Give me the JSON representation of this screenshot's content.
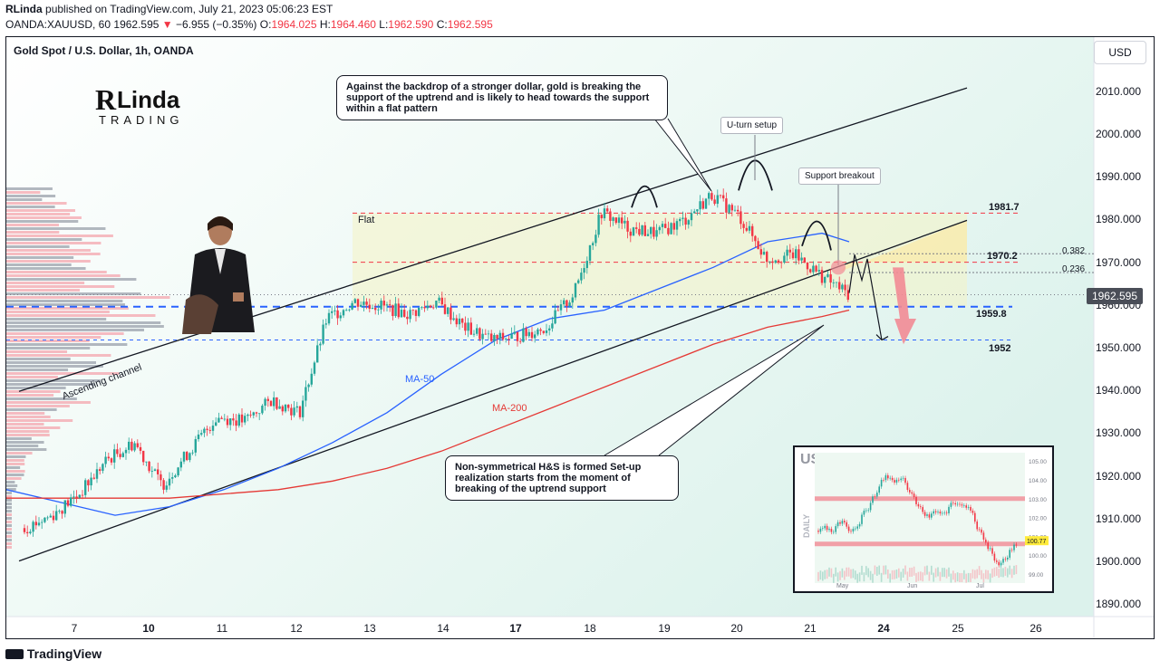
{
  "header": {
    "publisher": "RLinda",
    "published_text": "published on TradingView.com, July 21, 2023 05:06:23 EST",
    "symbol": "OANDA:XAUUSD, 60",
    "last": "1962.595",
    "arrow": "▼",
    "change": "−6.955 (−0.35%)",
    "o_label": "O:",
    "o": "1964.025",
    "h_label": "H:",
    "h": "1964.460",
    "l_label": "L:",
    "l": "1962.590",
    "c_label": "C:",
    "c": "1962.595"
  },
  "chart_title": "Gold Spot / U.S. Dollar, 1h, OANDA",
  "currency_button": "USD",
  "logo": {
    "line1": "RLinda",
    "line2": "TRADING"
  },
  "annotations": {
    "callout_top": "Against the backdrop of a stronger dollar, gold is breaking the support of the uptrend and is likely to head towards the support within a flat pattern",
    "callout_bottom": "Non-symmetrical H&S is formed Set-up realization starts from the moment of breaking of the uptrend support",
    "uturn": "U-turn setup",
    "support_breakout": "Support breakout",
    "flat": "Flat",
    "ascending_channel": "Ascending channel",
    "ma50": "MA-50",
    "ma200": "MA-200",
    "lvl_1981": "1981.7",
    "lvl_1970": "1970.2",
    "lvl_1959": "1959.8",
    "lvl_1952": "1952",
    "fib_0382": "0.382",
    "fib_0236": "0.236"
  },
  "current_price_tag": "1962.595",
  "footer": "TradingView",
  "colors": {
    "up": "#26a69a",
    "down": "#f23645",
    "ma50": "#2962ff",
    "ma200": "#e53935",
    "level": "#f23645",
    "support": "#2962ff"
  },
  "chart_data": [
    {
      "type": "candlestick",
      "title": "Gold Spot / U.S. Dollar, 1h, OANDA",
      "x_ticks": [
        "7",
        "10",
        "11",
        "12",
        "13",
        "14",
        "17",
        "18",
        "19",
        "20",
        "21",
        "24",
        "25",
        "26"
      ],
      "y_ticks": [
        1890,
        1900,
        1910,
        1920,
        1930,
        1940,
        1950,
        1960,
        1970,
        1980,
        1990,
        2000,
        2010
      ],
      "ylim": [
        1886,
        2017
      ],
      "levels": [
        1981.7,
        1970.2,
        1959.8,
        1952
      ],
      "last_price": 1962.595,
      "close_path": [
        [
          "7",
          1908
        ],
        [
          "7",
          1911
        ],
        [
          "10",
          1916
        ],
        [
          "10",
          1924
        ],
        [
          "10",
          1928
        ],
        [
          "11",
          1918
        ],
        [
          "11",
          1926
        ],
        [
          "11",
          1934
        ],
        [
          "12",
          1933
        ],
        [
          "12",
          1938
        ],
        [
          "12",
          1935
        ],
        [
          "13",
          1957
        ],
        [
          "13",
          1961
        ],
        [
          "13",
          1960
        ],
        [
          "14",
          1958
        ],
        [
          "14",
          1961
        ],
        [
          "17",
          1955
        ],
        [
          "17",
          1952
        ],
        [
          "17",
          1953
        ],
        [
          "18",
          1955
        ],
        [
          "18",
          1963
        ],
        [
          "18",
          1982
        ],
        [
          "19",
          1978
        ],
        [
          "19",
          1977
        ],
        [
          "20",
          1980
        ],
        [
          "20",
          1986
        ],
        [
          "20",
          1981
        ],
        [
          "21",
          1971
        ],
        [
          "21",
          1972
        ],
        [
          "21",
          1967
        ],
        [
          "21",
          1962.595
        ]
      ],
      "series": [
        {
          "name": "MA-50",
          "values_approx": [
            1917,
            1915,
            1918,
            1925,
            1932,
            1940,
            1950,
            1956,
            1962,
            1968,
            1975,
            1976
          ]
        },
        {
          "name": "MA-200",
          "values_approx": [
            1915,
            1915,
            1916,
            1919,
            1923,
            1930,
            1938,
            1943,
            1950,
            1955,
            1958
          ]
        }
      ],
      "ascending_channel": {
        "upper": [
          [
            1940,
            "7"
          ],
          [
            2011,
            "25"
          ]
        ],
        "lower": [
          [
            1901,
            "7"
          ],
          [
            1972,
            "21"
          ]
        ]
      }
    },
    {
      "type": "candlestick",
      "title": "USD",
      "timeframe": "DAILY",
      "x_ticks": [
        "May",
        "Jun",
        "Jul"
      ],
      "y_ticks": [
        99.0,
        100.0,
        101.0,
        102.0,
        103.0,
        104.0,
        105.0
      ],
      "last_price": 100.77,
      "resistance_bands": [
        103.0,
        100.6
      ]
    }
  ]
}
